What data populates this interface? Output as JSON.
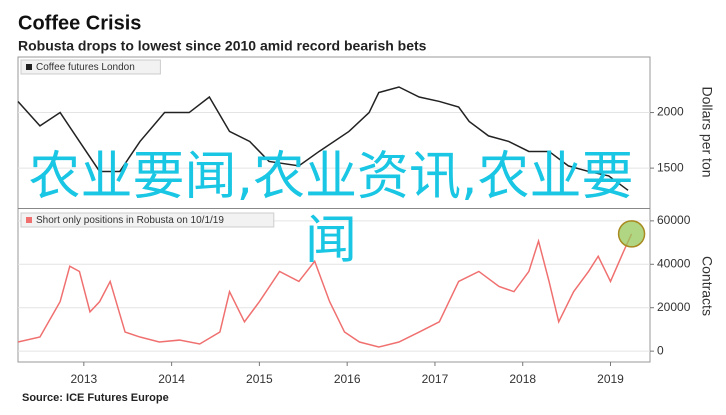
{
  "header": {
    "title": "Coffee Crisis",
    "subtitle": "Robusta drops to lowest since 2010 amid record bearish bets"
  },
  "chart_data": [
    {
      "type": "line",
      "y_label": "Dollars per ton",
      "series": [
        {
          "name": "Coffee futures London",
          "color": "#222222",
          "x": [
            2012.75,
            2013.0,
            2013.23,
            2013.45,
            2013.68,
            2013.91,
            2014.14,
            2014.42,
            2014.7,
            2014.93,
            2015.16,
            2015.39,
            2015.61,
            2015.95,
            2016.18,
            2016.52,
            2016.75,
            2016.86,
            2017.09,
            2017.32,
            2017.55,
            2017.77,
            2017.89,
            2018.11,
            2018.34,
            2018.57,
            2018.8,
            2019.02,
            2019.25,
            2019.48,
            2019.7
          ],
          "values": [
            2100,
            1880,
            2000,
            1740,
            1470,
            1470,
            1740,
            2000,
            2000,
            2140,
            1830,
            1740,
            1560,
            1520,
            1650,
            1830,
            2000,
            2180,
            2230,
            2140,
            2100,
            2050,
            1920,
            1790,
            1740,
            1650,
            1650,
            1520,
            1470,
            1430,
            1300
          ]
        }
      ],
      "xlim": [
        2012.75,
        2019.95
      ],
      "ylim": [
        1150,
        2500
      ],
      "yticks": [
        1500,
        2000
      ],
      "grid": true
    },
    {
      "type": "line",
      "y_label": "Contracts",
      "series": [
        {
          "name": "Short only positions in Robusta on 10/1/19",
          "color": "#f07070",
          "x": [
            2012.75,
            2013.0,
            2013.23,
            2013.34,
            2013.45,
            2013.57,
            2013.68,
            2013.8,
            2013.97,
            2014.14,
            2014.36,
            2014.59,
            2014.82,
            2015.05,
            2015.16,
            2015.33,
            2015.5,
            2015.73,
            2015.95,
            2016.13,
            2016.3,
            2016.47,
            2016.64,
            2016.86,
            2017.09,
            2017.32,
            2017.55,
            2017.77,
            2018.0,
            2018.23,
            2018.4,
            2018.57,
            2018.68,
            2018.8,
            2018.91,
            2019.08,
            2019.25,
            2019.36,
            2019.5,
            2019.65,
            2019.74
          ],
          "values": [
            4200,
            6500,
            22800,
            39100,
            36700,
            18100,
            22800,
            32100,
            8800,
            6500,
            4200,
            5100,
            3300,
            8800,
            27400,
            13500,
            22800,
            36700,
            32100,
            41400,
            22800,
            8800,
            4200,
            1900,
            4200,
            8800,
            13500,
            32100,
            36700,
            29800,
            27400,
            36700,
            50700,
            32100,
            13500,
            27400,
            36700,
            43700,
            32100,
            46000,
            54000
          ]
        }
      ],
      "xlim": [
        2012.75,
        2019.95
      ],
      "ylim": [
        -5000,
        65000
      ],
      "yticks": [
        0,
        {
          "value": 20000,
          "label": "20000"
        },
        {
          "value": 40000,
          "label": "40000"
        },
        {
          "value": 60000,
          "label": "60000"
        }
      ],
      "xticks": [
        {
          "value": 2013.5,
          "label": "2013"
        },
        {
          "value": 2014.5,
          "label": "2014"
        },
        {
          "value": 2015.5,
          "label": "2015"
        },
        {
          "value": 2016.5,
          "label": "2016"
        },
        {
          "value": 2017.5,
          "label": "2017"
        },
        {
          "value": 2018.5,
          "label": "2018"
        },
        {
          "value": 2019.5,
          "label": "2019"
        }
      ],
      "grid": true,
      "highlight_last": true
    }
  ],
  "source": "Source: ICE Futures Europe",
  "watermark": "农业要闻,农业资讯,农业要闻"
}
